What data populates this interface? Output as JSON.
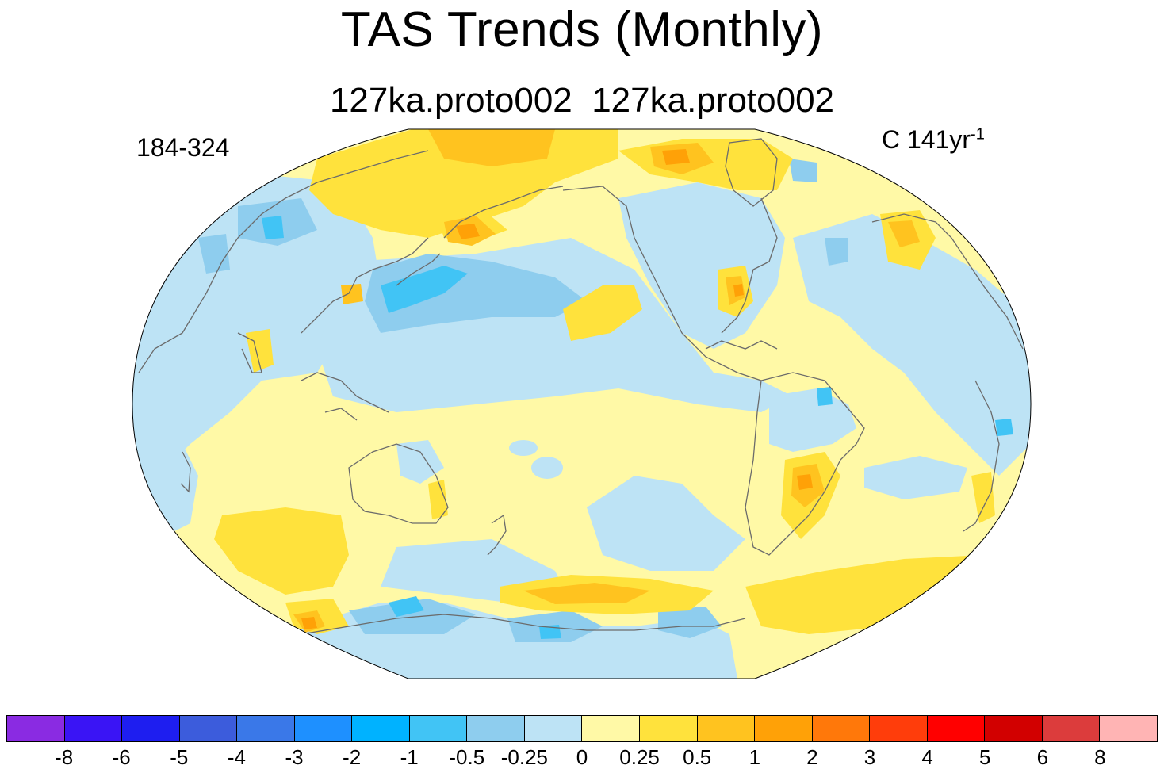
{
  "title": "TAS Trends (Monthly)",
  "subtitle": "127ka.proto002  127ka.proto002",
  "left_label": "184-324",
  "right_label": {
    "units": "C 141yr",
    "exponent": "-1"
  },
  "map": {
    "projection": "robinson-like",
    "center_longitude": 180,
    "base_color": "#fff9a6",
    "coastline_color": "#6b6b6b"
  },
  "colorbar": {
    "colors": [
      "#8a2be2",
      "#3a14f5",
      "#1e1ef0",
      "#3c5cdc",
      "#3a78e8",
      "#1e90ff",
      "#00b2ff",
      "#41c4f5",
      "#8ecdee",
      "#bde3f5",
      "#fff9a6",
      "#ffe23c",
      "#ffc31f",
      "#ffa107",
      "#ff780a",
      "#ff3d0b",
      "#ff0000",
      "#d20000",
      "#dc3c3c",
      "#ffb4b4"
    ],
    "tick_labels": [
      "-8",
      "-6",
      "-5",
      "-4",
      "-3",
      "-2",
      "-1",
      "-0.5",
      "-0.25",
      "0",
      "0.25",
      "0.5",
      "1",
      "2",
      "3",
      "4",
      "5",
      "6",
      "8"
    ]
  }
}
